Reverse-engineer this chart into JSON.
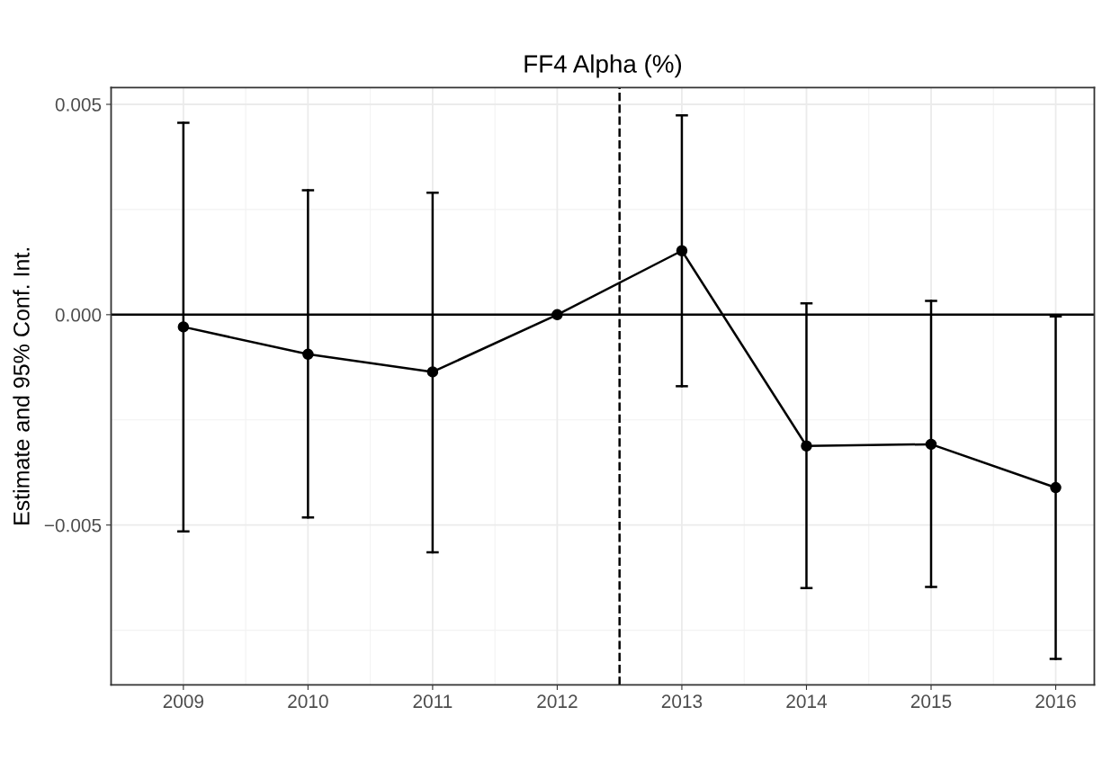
{
  "chart_data": {
    "type": "line",
    "title": "FF4 Alpha (%)",
    "ylabel": "Estimate and 95% Conf. Int.",
    "x": [
      2009,
      2010,
      2011,
      2012,
      2013,
      2014,
      2015,
      2016
    ],
    "series": [
      {
        "color": "#000000",
        "values": [
          -0.00029,
          -0.00094,
          -0.00136,
          0.0,
          0.00152,
          -0.00312,
          -0.00308,
          -0.00411
        ],
        "errors": [
          [
            -0.00515,
            0.00456
          ],
          [
            -0.00482,
            0.00296
          ],
          [
            -0.00565,
            0.0029
          ],
          null,
          [
            -0.0017,
            0.00474
          ],
          [
            -0.0065,
            0.00027
          ],
          [
            -0.00647,
            0.00033
          ],
          [
            -0.00818,
            -4e-05
          ]
        ]
      }
    ],
    "marker": "circle",
    "line_style": "solid",
    "grid": true,
    "xlim": [
      2008.42,
      2016.31
    ],
    "xticks": [
      2009,
      2010,
      2011,
      2012,
      2013,
      2014,
      2015,
      2016
    ],
    "ylim": [
      -0.0088,
      0.0054
    ],
    "yticks": [
      {
        "value": -0.005,
        "label": "−0.005"
      },
      {
        "value": 0,
        "label": "0.000"
      },
      {
        "value": 0.005,
        "label": "0.005"
      }
    ],
    "ref_lines": [
      {
        "axis": "y",
        "value": 0,
        "color": "#000000",
        "line_style": "solid"
      },
      {
        "axis": "x",
        "value": 2012.5,
        "color": "#000000",
        "line_style": "dashed"
      }
    ]
  }
}
